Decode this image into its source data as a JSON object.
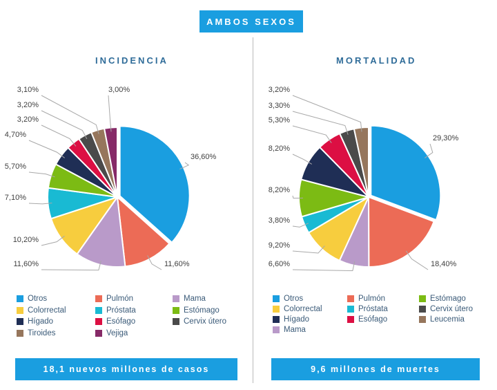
{
  "header": {
    "badge": "AMBOS SEXOS"
  },
  "colors": {
    "Otros": "#1a9ee0",
    "Pulmón": "#ec6b56",
    "Mama": "#b99ac9",
    "Colorrectal": "#f7cd3e",
    "Próstata": "#19bad3",
    "Estómago": "#7cbb14",
    "Hígado": "#1f2e55",
    "Esófago": "#dc0f43",
    "Cervix útero": "#4a4a4a",
    "Tiroides": "#96765c",
    "Vejiga": "#862a67",
    "Leucemia": "#96765c"
  },
  "chart_data": [
    {
      "type": "pie",
      "title": "INCIDENCIA",
      "footer": "18,1 nuevos millones de casos",
      "categories": [
        "Otros",
        "Pulmón",
        "Mama",
        "Colorrectal",
        "Próstata",
        "Estómago",
        "Hígado",
        "Esófago",
        "Cervix útero",
        "Tiroides",
        "Vejiga"
      ],
      "values": [
        36.6,
        11.6,
        11.6,
        10.2,
        7.1,
        5.7,
        4.7,
        3.2,
        3.2,
        3.1,
        3.0
      ],
      "value_labels": [
        "36,60%",
        "11,60%",
        "11,60%",
        "10,20%",
        "7,10%",
        "5,70%",
        "4,70%",
        "3,20%",
        "3,20%",
        "3,10%",
        "3,00%"
      ],
      "legend": [
        "Otros",
        "Pulmón",
        "Mama",
        "Colorrectal",
        "Próstata",
        "Estómago",
        "Hígado",
        "Esófago",
        "Cervix útero",
        "Tiroides",
        "Vejiga"
      ]
    },
    {
      "type": "pie",
      "title": "MORTALIDAD",
      "footer": "9,6 millones de muertes",
      "categories": [
        "Otros",
        "Pulmón",
        "Mama",
        "Colorrectal",
        "Próstata",
        "Estómago",
        "Hígado",
        "Esófago",
        "Cervix útero",
        "Leucemia"
      ],
      "values": [
        29.3,
        18.4,
        6.6,
        9.2,
        3.8,
        8.2,
        8.2,
        5.3,
        3.3,
        3.2
      ],
      "value_labels": [
        "29,30%",
        "18,40%",
        "6,60%",
        "9,20%",
        "3,80%",
        "8,20%",
        "8,20%",
        "5,30%",
        "3,30%",
        "3,20%"
      ],
      "legend": [
        "Otros",
        "Pulmón",
        "Estómago",
        "Colorrectal",
        "Próstata",
        "Cervix útero",
        "Hígado",
        "Esófago",
        "Leucemia",
        "Mama"
      ]
    }
  ]
}
